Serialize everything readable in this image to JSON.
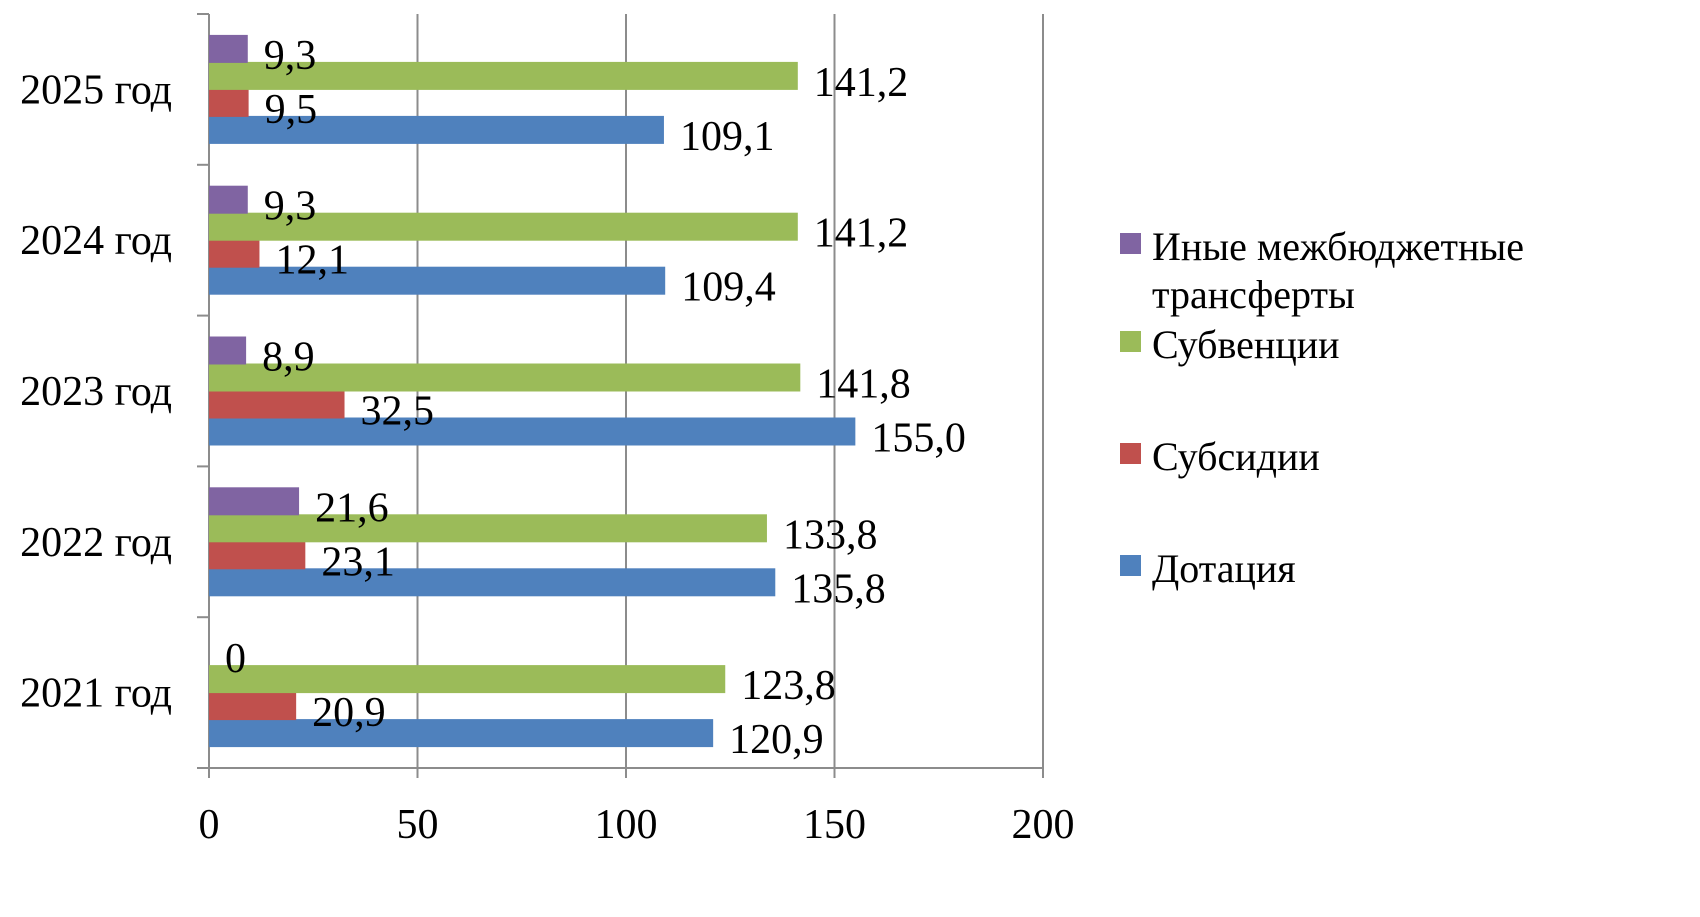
{
  "chart_data": {
    "type": "bar",
    "orientation": "horizontal",
    "categories": [
      "2021 год",
      "2022 год",
      "2023 год",
      "2024 год",
      "2025 год"
    ],
    "series": [
      {
        "name": "Дотация",
        "color": "#4F81BD",
        "values": [
          120.9,
          135.8,
          155.0,
          109.4,
          109.1
        ],
        "labels": [
          "120,9",
          "135,8",
          "155,0",
          "109,4",
          "109,1"
        ]
      },
      {
        "name": "Субсидии",
        "color": "#C0504D",
        "values": [
          20.9,
          23.1,
          32.5,
          12.1,
          9.5
        ],
        "labels": [
          "20,9",
          "23,1",
          "32,5",
          "12,1",
          "9,5"
        ]
      },
      {
        "name": "Субвенции",
        "color": "#9BBB59",
        "values": [
          123.8,
          133.8,
          141.8,
          141.2,
          141.2
        ],
        "labels": [
          "123,8",
          "133,8",
          "141,8",
          "141,2",
          "141,2"
        ]
      },
      {
        "name": "Иные межбюджетные трансферты",
        "color": "#8064A2",
        "values": [
          0,
          21.6,
          8.9,
          9.3,
          9.3
        ],
        "labels": [
          "0",
          "21,6",
          "8,9",
          "9,3",
          "9,3"
        ]
      }
    ],
    "x_ticks": [
      "0",
      "50",
      "100",
      "150",
      "200"
    ],
    "xlim": [
      0,
      200
    ],
    "grid": true,
    "legend_position": "right",
    "legend": [
      {
        "text_lines": [
          "Иные межбюджетные",
          "трансферты"
        ],
        "color": "#8064A2"
      },
      {
        "text_lines": [
          "Субвенции"
        ],
        "color": "#9BBB59"
      },
      {
        "text_lines": [
          "Субсидии"
        ],
        "color": "#C0504D"
      },
      {
        "text_lines": [
          "Дотация"
        ],
        "color": "#4F81BD"
      }
    ],
    "title": "",
    "xlabel": "",
    "ylabel": ""
  }
}
